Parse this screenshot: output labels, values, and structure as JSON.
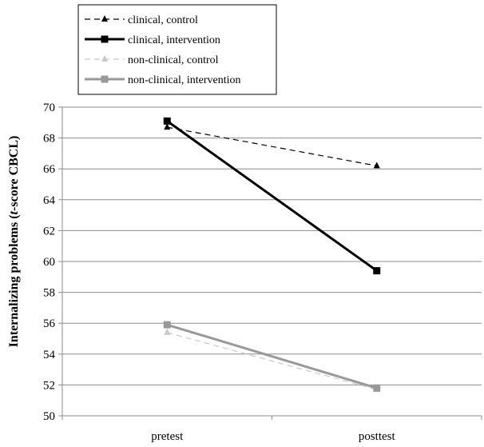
{
  "chart_data": {
    "type": "line",
    "categories": [
      "pretest",
      "posttest"
    ],
    "ylabel_main": "Internalizing problems (",
    "ylabel_italic": "t",
    "ylabel_rest": "-score CBCL)",
    "ylim": [
      50,
      70
    ],
    "ytick_step": 2,
    "ytick_labels": [
      "50",
      "52",
      "54",
      "56",
      "58",
      "60",
      "62",
      "64",
      "66",
      "68",
      "70"
    ],
    "grid": true,
    "legend_position": "top-left",
    "series": [
      {
        "name": "clinical, control",
        "values": [
          68.7,
          66.2
        ],
        "color": "#000000",
        "dashed": true,
        "marker": "triangle",
        "width": 1.2
      },
      {
        "name": "clinical, intervention",
        "values": [
          69.1,
          59.4
        ],
        "color": "#000000",
        "dashed": false,
        "marker": "square",
        "width": 3
      },
      {
        "name": "non-clinical, control",
        "values": [
          55.4,
          51.7
        ],
        "color": "#c8c8c8",
        "dashed": true,
        "marker": "triangle",
        "width": 1.2
      },
      {
        "name": "non-clinical, intervention",
        "values": [
          55.9,
          51.8
        ],
        "color": "#999999",
        "dashed": false,
        "marker": "square",
        "width": 3
      }
    ]
  }
}
